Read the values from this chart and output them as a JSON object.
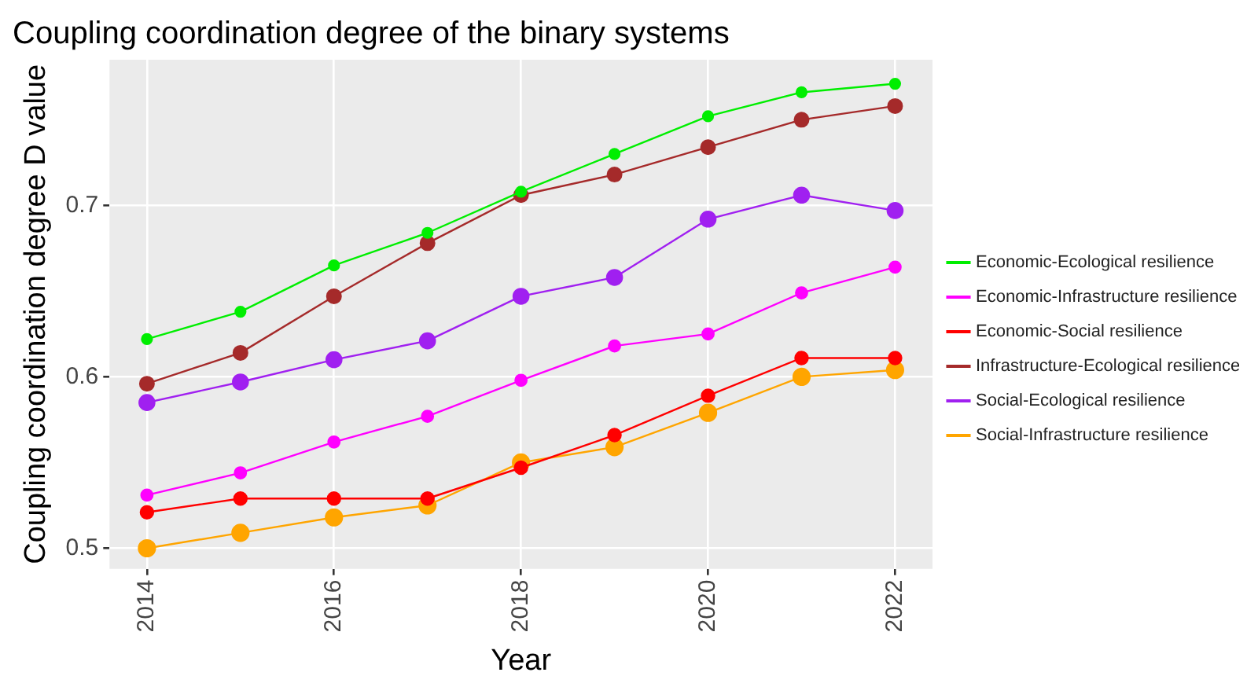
{
  "chart_data": {
    "type": "line",
    "title": "Coupling coordination degree of the binary systems",
    "xlabel": "Year",
    "ylabel": "Coupling coordination degree D value",
    "x": [
      2014,
      2015,
      2016,
      2017,
      2018,
      2019,
      2020,
      2021,
      2022
    ],
    "series": [
      {
        "name": "Economic-Ecological resilience",
        "color": "#00ee00",
        "values": [
          0.622,
          0.638,
          0.665,
          0.684,
          0.708,
          0.73,
          0.752,
          0.766,
          0.771
        ]
      },
      {
        "name": "Economic-Infrastructure resilience",
        "color": "#ff00ff",
        "values": [
          0.531,
          0.544,
          0.562,
          0.577,
          0.598,
          0.618,
          0.625,
          0.649,
          0.664
        ]
      },
      {
        "name": "Economic-Social resilience",
        "color": "#ff0000",
        "values": [
          0.521,
          0.529,
          0.529,
          0.529,
          0.547,
          0.566,
          0.589,
          0.611,
          0.611
        ]
      },
      {
        "name": "Infrastructure-Ecological resilience",
        "color": "#a52a2a",
        "values": [
          0.596,
          0.614,
          0.647,
          0.678,
          0.706,
          0.718,
          0.734,
          0.75,
          0.758
        ]
      },
      {
        "name": "Social-Ecological resilience",
        "color": "#a020f0",
        "values": [
          0.585,
          0.597,
          0.61,
          0.621,
          0.647,
          0.658,
          0.692,
          0.706,
          0.697
        ]
      },
      {
        "name": "Social-Infrastructure resilience",
        "color": "#ffa500",
        "values": [
          0.5,
          0.509,
          0.518,
          0.525,
          0.55,
          0.559,
          0.579,
          0.6,
          0.604
        ]
      }
    ],
    "xlim": [
      2013.6,
      2022.4
    ],
    "xticks": [
      2014,
      2016,
      2018,
      2020,
      2022
    ],
    "ylim": [
      0.488,
      0.785
    ],
    "yticks": [
      0.5,
      0.6,
      0.7
    ],
    "grid": true,
    "legend": "right",
    "marker": "circle",
    "line_style": "solid"
  }
}
